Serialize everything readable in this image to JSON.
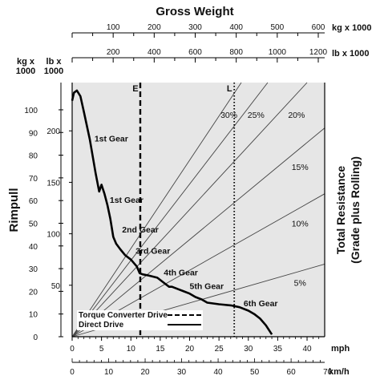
{
  "chart_data": {
    "type": "line",
    "title": "Gross Weight",
    "top_axis_kg": {
      "unit": "kg x 1000",
      "ticks": [
        100,
        200,
        300,
        400,
        500,
        600
      ]
    },
    "top_axis_lb": {
      "unit": "lb x 1000",
      "ticks": [
        200,
        400,
        600,
        800,
        1000,
        1200
      ]
    },
    "left_axis_kg": {
      "unit_line1": "kg x",
      "unit_line2": "1000",
      "ticks": [
        0,
        10,
        20,
        30,
        40,
        50,
        60,
        70,
        80,
        90,
        100
      ]
    },
    "left_axis_lb": {
      "unit_line1": "lb x",
      "unit_line2": "1000",
      "ticks": [
        50,
        100,
        150,
        200
      ]
    },
    "ylabel": "Rimpull",
    "right_label": {
      "line1": "Total Resistance",
      "line2": "(Grade plus Rolling)"
    },
    "x_mph": {
      "unit": "mph",
      "ticks": [
        0,
        5,
        10,
        15,
        20,
        25,
        30,
        35,
        40
      ],
      "range": [
        0,
        43
      ]
    },
    "x_kmh": {
      "unit": "km/h",
      "ticks": [
        0,
        10,
        20,
        30,
        40,
        50,
        60,
        70
      ]
    },
    "ylim_kg": [
      0,
      112
    ],
    "rimpull_curve": {
      "mph": [
        0,
        0.3,
        0.8,
        1.4,
        2,
        3,
        4,
        4.6,
        5,
        5.5,
        6,
        6.5,
        7,
        7.5,
        8.2,
        9,
        10,
        11,
        11.5,
        12,
        13,
        14.5,
        16,
        16.5,
        17,
        18,
        19,
        20,
        21,
        22,
        23,
        25,
        27,
        28.5,
        30,
        31,
        32,
        33,
        34
      ],
      "kg": [
        104,
        107.5,
        108.5,
        106,
        99,
        87,
        72,
        64,
        67,
        63,
        58,
        52,
        44,
        41,
        38.5,
        36,
        34,
        31,
        28,
        27.5,
        27,
        26,
        23,
        22,
        22,
        21,
        20,
        19,
        17.5,
        16.5,
        15,
        14.3,
        13.8,
        13,
        11.5,
        10,
        8,
        5,
        1
      ]
    },
    "gear_labels": [
      {
        "text": "1st Gear",
        "mph": 3.8,
        "kg": 86
      },
      {
        "text": "1st Gear",
        "mph": 6.4,
        "kg": 59
      },
      {
        "text": "2nd Gear",
        "mph": 8.5,
        "kg": 46
      },
      {
        "text": "3rd Gear",
        "mph": 10.8,
        "kg": 36.5
      },
      {
        "text": "4th Gear",
        "mph": 15.6,
        "kg": 27
      },
      {
        "text": "5th Gear",
        "mph": 20,
        "kg": 21
      },
      {
        "text": "6th Gear",
        "mph": 29.2,
        "kg": 13.5
      }
    ],
    "marker_lines": [
      {
        "label": "E",
        "mph": 11.6,
        "style": "dashed"
      },
      {
        "label": "L",
        "mph": 27.6,
        "style": "dotted"
      }
    ],
    "resistance_lines": [
      {
        "label": "30%",
        "end_mph": 28.8,
        "end_kg": 112,
        "label_mph": 26.7,
        "label_kg": 96.5
      },
      {
        "label": "25%",
        "end_mph": 33.3,
        "end_kg": 112,
        "label_mph": 31.3,
        "label_kg": 96.5
      },
      {
        "label": "20%",
        "end_mph": 40,
        "end_kg": 112,
        "label_mph": 38.2,
        "label_kg": 96.5
      },
      {
        "label": "15%",
        "end_mph": 43,
        "end_kg": 92,
        "label_mph": 38.8,
        "label_kg": 73.5
      },
      {
        "label": "10%",
        "end_mph": 43,
        "end_kg": 63,
        "label_mph": 38.8,
        "label_kg": 48.5
      },
      {
        "label": "5%",
        "end_mph": 43,
        "end_kg": 32,
        "label_mph": 38.8,
        "label_kg": 22.5
      }
    ],
    "legend": [
      {
        "label": "Torque Converter Drive",
        "style": "dashed"
      },
      {
        "label": "Direct Drive",
        "style": "solid"
      }
    ],
    "legend_position": "bottom-left"
  }
}
